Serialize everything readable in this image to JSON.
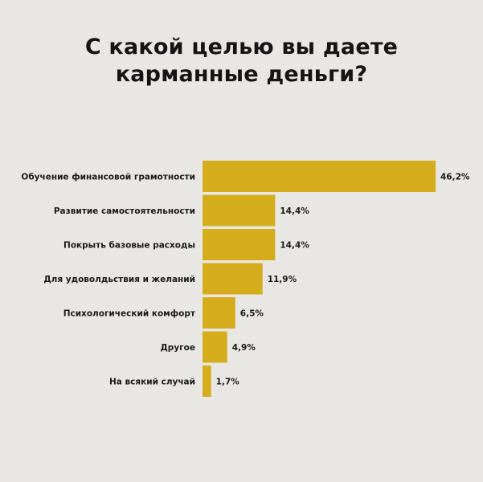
{
  "title": {
    "line1": "С какой целью вы даете",
    "line2": "карманные деньги?"
  },
  "colors": {
    "background": "#e9e7e3",
    "bar": "#d5ad1c",
    "text": "#141414"
  },
  "chart_data": {
    "type": "bar",
    "orientation": "horizontal",
    "title": "С какой целью вы даете карманные деньги?",
    "categories": [
      "Обучение финансовой грамотности",
      "Развитие самостоятельности",
      "Покрыть базовые расходы",
      "Для удоволдьствия и желаний",
      "Психологический комфорт",
      "Другое",
      "На всякий случай"
    ],
    "values": [
      46.2,
      14.4,
      14.4,
      11.9,
      6.5,
      4.9,
      1.7
    ],
    "value_labels": [
      "46,2%",
      "14,4%",
      "14,4%",
      "11,9%",
      "6,5%",
      "4,9%",
      "1,7%"
    ],
    "unit": "%",
    "grid": false,
    "legend": "none"
  }
}
